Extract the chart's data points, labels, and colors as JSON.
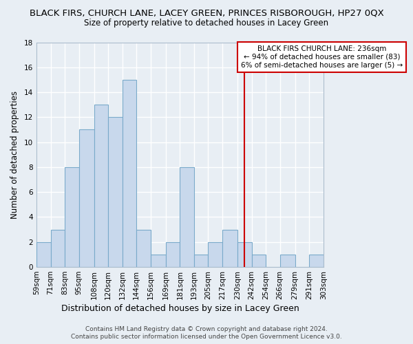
{
  "title": "BLACK FIRS, CHURCH LANE, LACEY GREEN, PRINCES RISBOROUGH, HP27 0QX",
  "subtitle": "Size of property relative to detached houses in Lacey Green",
  "xlabel": "Distribution of detached houses by size in Lacey Green",
  "ylabel": "Number of detached properties",
  "footer_line1": "Contains HM Land Registry data © Crown copyright and database right 2024.",
  "footer_line2": "Contains public sector information licensed under the Open Government Licence v3.0.",
  "bin_edges": [
    59,
    71,
    83,
    95,
    108,
    120,
    132,
    144,
    156,
    169,
    181,
    193,
    205,
    217,
    230,
    242,
    254,
    266,
    279,
    291,
    303
  ],
  "bin_labels": [
    "59sqm",
    "71sqm",
    "83sqm",
    "95sqm",
    "108sqm",
    "120sqm",
    "132sqm",
    "144sqm",
    "156sqm",
    "169sqm",
    "181sqm",
    "193sqm",
    "205sqm",
    "217sqm",
    "230sqm",
    "242sqm",
    "254sqm",
    "266sqm",
    "279sqm",
    "291sqm",
    "303sqm"
  ],
  "counts": [
    2,
    3,
    8,
    11,
    13,
    12,
    15,
    3,
    1,
    2,
    8,
    1,
    2,
    3,
    2,
    1,
    0,
    1,
    0,
    1
  ],
  "bar_color": "#c8d8ec",
  "bar_edge_color": "#7aaaca",
  "reference_line_x": 236,
  "reference_line_color": "#cc0000",
  "ylim": [
    0,
    18
  ],
  "yticks": [
    0,
    2,
    4,
    6,
    8,
    10,
    12,
    14,
    16,
    18
  ],
  "annotation_title": "BLACK FIRS CHURCH LANE: 236sqm",
  "annotation_line1": "← 94% of detached houses are smaller (83)",
  "annotation_line2": "6% of semi-detached houses are larger (5) →",
  "annotation_box_color": "#ffffff",
  "annotation_box_edge": "#cc0000",
  "background_color": "#e8eef4",
  "plot_bg_color": "#e8eef4",
  "grid_color": "#ffffff",
  "title_fontsize": 9.5,
  "subtitle_fontsize": 8.5,
  "tick_fontsize": 7.5,
  "ylabel_fontsize": 8.5,
  "xlabel_fontsize": 9.0,
  "footer_fontsize": 6.5
}
